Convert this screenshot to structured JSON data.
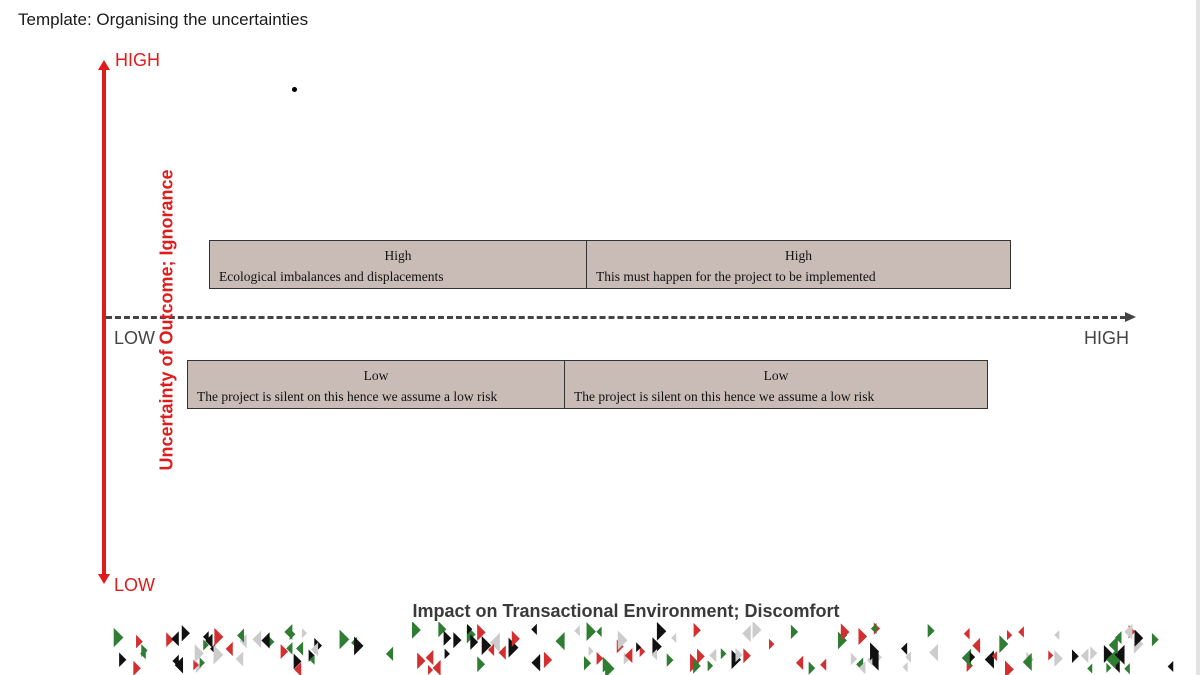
{
  "title": "Template: Organising the uncertainties",
  "y_axis": {
    "label": "Uncertainty of Outcome; Ignorance",
    "high": "HIGH",
    "low": "LOW"
  },
  "x_axis": {
    "label": "Impact on Transactional Environment; Discomfort",
    "high": "HIGH",
    "low": "LOW"
  },
  "rows": [
    {
      "cells": [
        {
          "level": "High",
          "text": "Ecological imbalances and displacements"
        },
        {
          "level": "High",
          "text": "This must happen for the project to be implemented"
        }
      ]
    },
    {
      "cells": [
        {
          "level": "Low",
          "text": "The project is silent on this hence we assume a low risk"
        },
        {
          "level": "Low",
          "text": "The project is silent on this hence we assume a low risk"
        }
      ]
    }
  ],
  "colors": {
    "axis_red": "#e01b1b",
    "axis_gray": "#444444",
    "box_fill": "#c9bcb6",
    "decor": [
      "#d32f2f",
      "#2e7d32",
      "#111111",
      "#cccccc"
    ]
  }
}
